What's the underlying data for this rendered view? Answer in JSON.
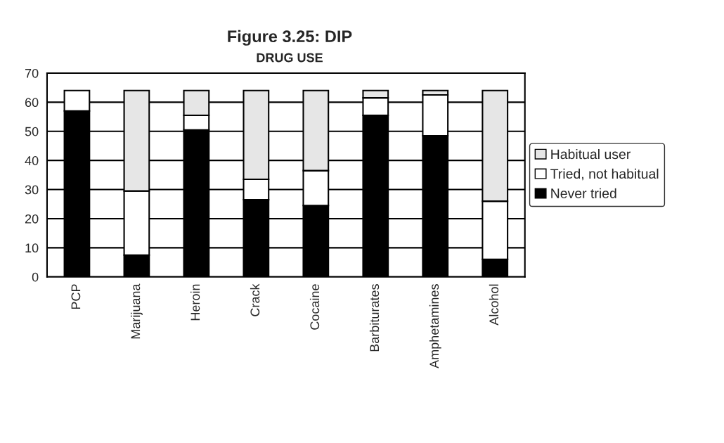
{
  "chart_data": {
    "type": "bar",
    "title": "Figure 3.25: DIP",
    "subtitle": "DRUG USE",
    "stacked": true,
    "categories": [
      "PCP",
      "Marijuana",
      "Heroin",
      "Crack",
      "Cocaine",
      "Barbiturates",
      "Amphetamines",
      "Alcohol"
    ],
    "series": [
      {
        "name": "Never tried",
        "color": "#000000",
        "values": [
          57,
          7.5,
          50.5,
          26.5,
          24.5,
          55.5,
          48.5,
          6
        ]
      },
      {
        "name": "Tried, not habitual",
        "color": "#ffffff",
        "values": [
          7,
          22,
          5,
          7,
          12,
          6,
          14,
          20
        ]
      },
      {
        "name": "Habitual user",
        "color": "#e6e6e6",
        "values": [
          null,
          34.5,
          8.5,
          30.5,
          27.5,
          2.5,
          1.5,
          38
        ]
      }
    ],
    "ylim": [
      0,
      70
    ],
    "yticks": [
      0,
      10,
      20,
      30,
      40,
      50,
      60,
      70
    ],
    "grid": "y",
    "legend": "right"
  }
}
